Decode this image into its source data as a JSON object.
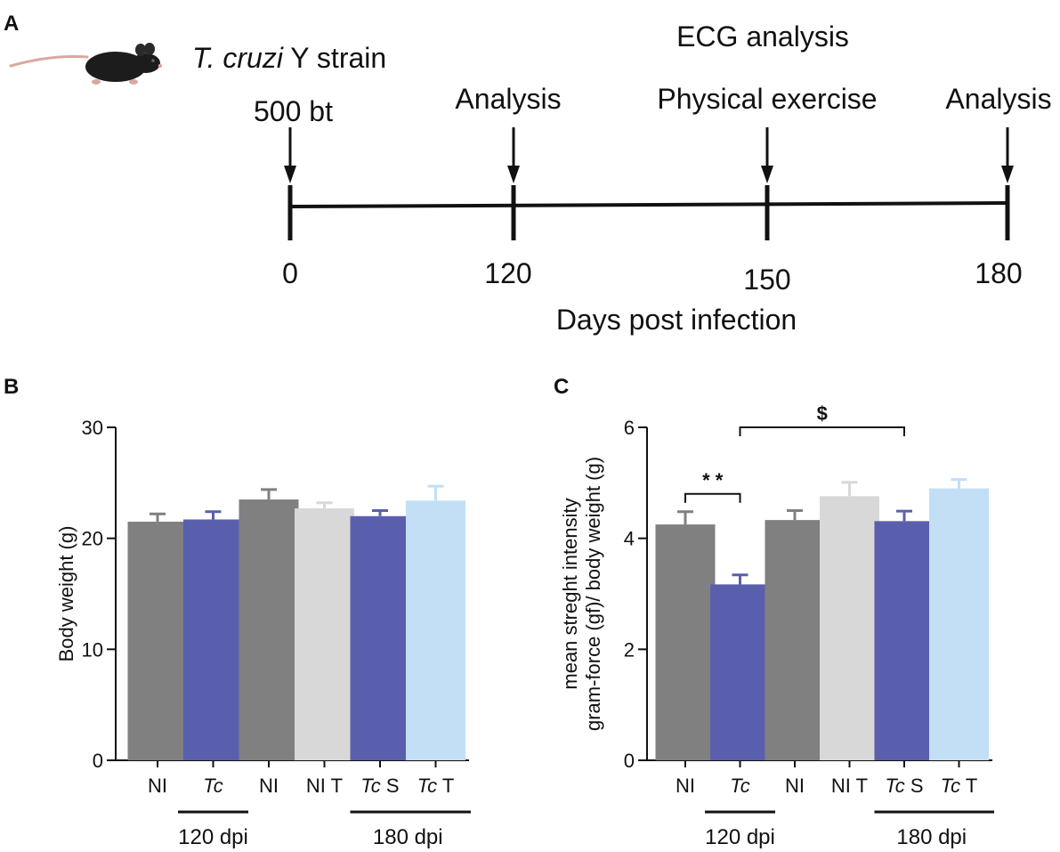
{
  "panel_a": {
    "label": "A",
    "strain_italic": "T. cruzi",
    "strain_rest": " Y strain",
    "ecg_label": "ECG analysis",
    "events": [
      {
        "day": 0,
        "label": "500 bt"
      },
      {
        "day": 120,
        "label": "Analysis"
      },
      {
        "day": 150,
        "label": "Physical exercise"
      },
      {
        "day": 180,
        "label": "Analysis"
      }
    ],
    "tick_labels": [
      "0",
      "120",
      "150",
      "180"
    ],
    "axis_title": "Days post infection"
  },
  "colors": {
    "gray": "#808080",
    "blue": "#5a5fad",
    "light_gray": "#d8d8d8",
    "light_blue": "#c3dff5"
  },
  "chart_data": [
    {
      "panel_label": "B",
      "type": "bar",
      "ylabel": "Body weight (g)",
      "ylim": [
        0,
        30
      ],
      "yticks": [
        0,
        10,
        20,
        30
      ],
      "categories": [
        {
          "italic": "",
          "text": "NI"
        },
        {
          "italic": "Tc",
          "text": ""
        },
        {
          "italic": "",
          "text": "NI"
        },
        {
          "italic": "",
          "text": "NI T"
        },
        {
          "italic": "Tc",
          "text": " S"
        },
        {
          "italic": "Tc",
          "text": " T"
        }
      ],
      "values": [
        21.5,
        21.7,
        23.5,
        22.7,
        22.0,
        23.4
      ],
      "errors": [
        0.7,
        0.7,
        0.9,
        0.5,
        0.5,
        1.3
      ],
      "bar_colors": [
        "gray",
        "blue",
        "gray",
        "light_gray",
        "blue",
        "light_blue"
      ],
      "groups": [
        {
          "label": "120 dpi",
          "from": 1,
          "to": 1
        },
        {
          "label": "180 dpi",
          "from": 4,
          "to": 5
        }
      ],
      "significance": []
    },
    {
      "panel_label": "C",
      "type": "bar",
      "ylabel_lines": [
        "mean streght intensity",
        "gram-force (gf)/ body weight (g)"
      ],
      "ylim": [
        0,
        6
      ],
      "yticks": [
        0,
        2,
        4,
        6
      ],
      "categories": [
        {
          "italic": "",
          "text": "NI"
        },
        {
          "italic": "Tc",
          "text": ""
        },
        {
          "italic": "",
          "text": "NI"
        },
        {
          "italic": "",
          "text": "NI T"
        },
        {
          "italic": "Tc",
          "text": " S"
        },
        {
          "italic": "Tc",
          "text": " T"
        }
      ],
      "values": [
        4.25,
        3.17,
        4.33,
        4.76,
        4.31,
        4.9
      ],
      "errors": [
        0.23,
        0.17,
        0.17,
        0.25,
        0.18,
        0.16
      ],
      "bar_colors": [
        "gray",
        "blue",
        "gray",
        "light_gray",
        "blue",
        "light_blue"
      ],
      "groups": [
        {
          "label": "120 dpi",
          "from": 1,
          "to": 1
        },
        {
          "label": "180 dpi",
          "from": 4,
          "to": 5
        }
      ],
      "significance": [
        {
          "from": 0,
          "to": 1,
          "label": "* *",
          "y": 4.8
        },
        {
          "from": 1,
          "to": 4,
          "label": "$",
          "y": 6.0
        }
      ]
    }
  ]
}
